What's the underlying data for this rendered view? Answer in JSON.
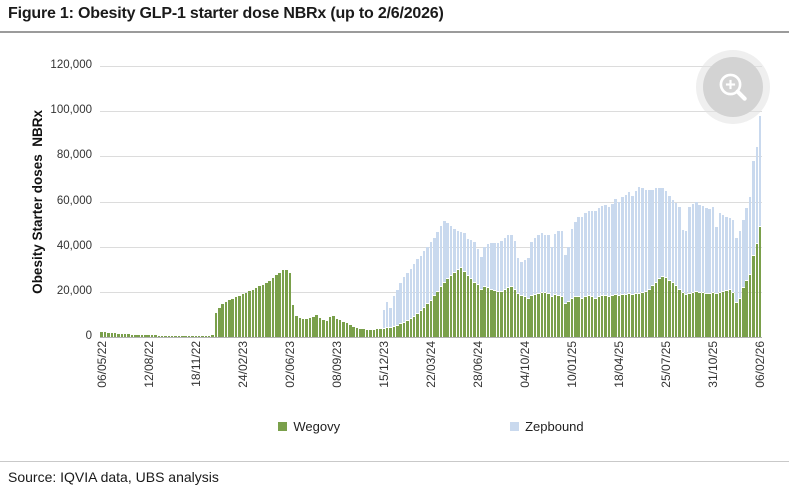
{
  "figure": {
    "title": "Figure 1: Obesity GLP-1 starter dose NBRx (up to 2/6/2026)",
    "source": "Source: IQVIA data, UBS analysis"
  },
  "icons": {
    "zoom_button": "magnifier-plus-icon"
  },
  "colors": {
    "wegovy": "#7aa04b",
    "zepbound": "#c9d9ee",
    "gridline": "#dcdcdc",
    "axis_line": "#b3b3b3"
  },
  "chart_data": {
    "type": "bar",
    "stacked": true,
    "x_unit": "week",
    "x_start": "06/05/22",
    "x_end": "06/02/26",
    "xtick_every": 14,
    "xtick_labels": [
      "06/05/22",
      "12/08/22",
      "18/11/22",
      "24/02/23",
      "02/06/23",
      "08/09/23",
      "15/12/23",
      "22/03/24",
      "28/06/24",
      "04/10/24",
      "10/01/25",
      "18/04/25",
      "25/07/25",
      "31/10/25",
      "06/02/26"
    ],
    "ylabel": "Obesity Starter doses  NBRx",
    "ylim": [
      0,
      120000
    ],
    "ytick_step": 20000,
    "ytick_labels": [
      "0",
      "20,000",
      "40,000",
      "60,000",
      "80,000",
      "100,000",
      "120,000"
    ],
    "grid": "horizontal",
    "legend": [
      "Wegovy",
      "Zepbound"
    ],
    "legend_position": "bottom",
    "series": [
      {
        "name": "Wegovy",
        "color": "#7aa04b",
        "values": [
          2200,
          2000,
          1900,
          1800,
          1600,
          1500,
          1400,
          1300,
          1200,
          1050,
          950,
          900,
          850,
          800,
          750,
          700,
          700,
          650,
          600,
          600,
          550,
          550,
          500,
          500,
          500,
          450,
          450,
          450,
          500,
          500,
          550,
          550,
          600,
          700,
          10500,
          13000,
          14500,
          15500,
          16500,
          17000,
          17500,
          18000,
          19000,
          19500,
          20500,
          21000,
          21500,
          22500,
          23000,
          24000,
          25000,
          26000,
          27500,
          28500,
          29500,
          29800,
          28500,
          14000,
          9500,
          8500,
          8000,
          7800,
          8200,
          8800,
          9800,
          8500,
          7600,
          7200,
          8800,
          9300,
          8000,
          7400,
          6800,
          6000,
          5200,
          4500,
          4000,
          3600,
          3400,
          3300,
          3200,
          3300,
          3400,
          3500,
          3600,
          3800,
          4000,
          4500,
          5000,
          5600,
          6200,
          7000,
          8000,
          9000,
          10200,
          11500,
          13000,
          14500,
          16000,
          18000,
          20000,
          22000,
          24000,
          25500,
          27000,
          28500,
          29800,
          30500,
          29000,
          27000,
          25500,
          24000,
          23000,
          21000,
          22000,
          21500,
          21000,
          20500,
          20000,
          20000,
          21000,
          21500,
          22000,
          21000,
          19000,
          18000,
          17500,
          17000,
          18000,
          18500,
          19000,
          19500,
          19500,
          19000,
          17500,
          18500,
          18000,
          17500,
          14500,
          15500,
          17000,
          17500,
          17500,
          17000,
          17500,
          18000,
          17500,
          17000,
          17500,
          18000,
          18000,
          17500,
          18000,
          18500,
          18000,
          18500,
          18500,
          19000,
          18500,
          19000,
          19000,
          19500,
          20000,
          21000,
          22500,
          24000,
          25500,
          26500,
          26000,
          25000,
          24000,
          22500,
          21000,
          19500,
          18500,
          19000,
          19500,
          20000,
          19500,
          19500,
          19000,
          19000,
          19500,
          19000,
          19500,
          20000,
          20500,
          21000,
          19500,
          15000,
          17000,
          21500,
          25000,
          27500,
          36000,
          41000,
          48500
        ]
      },
      {
        "name": "Zepbound",
        "color": "#c9d9ee",
        "values": [
          0,
          0,
          0,
          0,
          0,
          0,
          0,
          0,
          0,
          0,
          0,
          0,
          0,
          0,
          0,
          0,
          0,
          0,
          0,
          0,
          0,
          0,
          0,
          0,
          0,
          0,
          0,
          0,
          0,
          0,
          0,
          0,
          0,
          0,
          0,
          0,
          0,
          0,
          0,
          0,
          0,
          0,
          0,
          0,
          0,
          0,
          0,
          0,
          0,
          0,
          0,
          0,
          0,
          0,
          0,
          0,
          0,
          0,
          0,
          0,
          0,
          0,
          0,
          0,
          0,
          0,
          0,
          0,
          0,
          0,
          0,
          0,
          0,
          0,
          0,
          0,
          0,
          0,
          0,
          0,
          0,
          0,
          0,
          0,
          8500,
          11500,
          9000,
          13500,
          16000,
          18400,
          20300,
          21500,
          22000,
          23500,
          24300,
          24500,
          25000,
          25500,
          26000,
          26000,
          26500,
          27000,
          27500,
          25000,
          22000,
          19500,
          17200,
          16000,
          17000,
          16500,
          17500,
          18000,
          16000,
          14500,
          18000,
          19500,
          20500,
          21000,
          21500,
          22500,
          23000,
          23500,
          23000,
          21500,
          16000,
          15000,
          16500,
          18000,
          24000,
          25500,
          26000,
          26500,
          25500,
          26000,
          22500,
          27000,
          29000,
          29500,
          22000,
          24500,
          31000,
          33500,
          35500,
          36000,
          37500,
          38000,
          38500,
          39000,
          39500,
          40000,
          40500,
          40000,
          41000,
          42500,
          42000,
          43500,
          44500,
          45000,
          44000,
          45500,
          47500,
          46500,
          45000,
          44000,
          42500,
          42000,
          40500,
          39500,
          38500,
          37500,
          36500,
          37000,
          36500,
          28000,
          28500,
          38500,
          39500,
          40000,
          39000,
          38500,
          38000,
          37500,
          38000,
          29500,
          35500,
          34000,
          32500,
          31500,
          32500,
          29000,
          30000,
          30500,
          32000,
          34500,
          42000,
          43000,
          49500
        ]
      }
    ]
  }
}
